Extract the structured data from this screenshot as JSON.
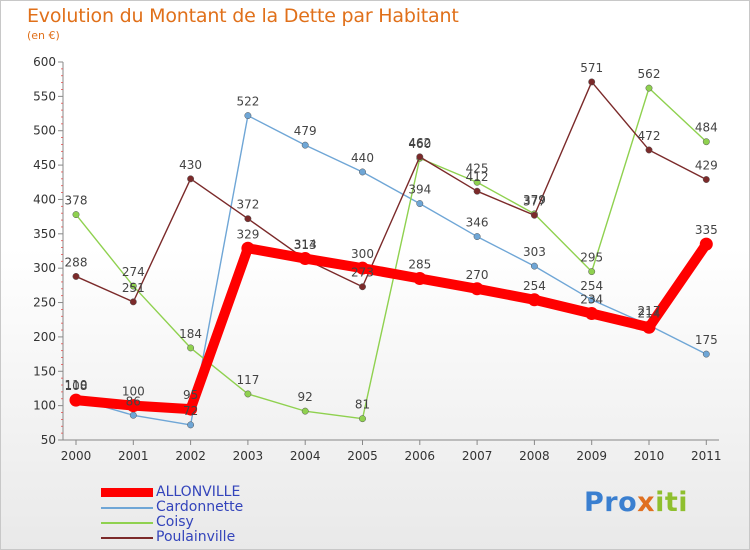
{
  "title": "Evolution du Montant de la Dette par Habitant",
  "subtitle": "(en €)",
  "logo": {
    "parts": [
      "Pro",
      "x",
      "iti"
    ],
    "colors": [
      "#3a7fd0",
      "#e07020",
      "#8fbf2e"
    ]
  },
  "chart_data": {
    "type": "line",
    "title": "Evolution du Montant de la Dette par Habitant",
    "ylabel": "(en €)",
    "xlabel": "",
    "x": [
      "2000",
      "2001",
      "2002",
      "2003",
      "2004",
      "2005",
      "2006",
      "2007",
      "2008",
      "2009",
      "2010",
      "2011"
    ],
    "ylim": [
      50,
      600
    ],
    "yticks": [
      50,
      100,
      150,
      200,
      250,
      300,
      350,
      400,
      450,
      500,
      550,
      600
    ],
    "grid": false,
    "legend_position": "bottom-left",
    "series": [
      {
        "name": "ALLONVILLE",
        "color": "#ff0000",
        "values": [
          108,
          100,
          95,
          329,
          314,
          300,
          285,
          270,
          254,
          234,
          214,
          335
        ]
      },
      {
        "name": "Cardonnette",
        "color": "#6fa6d6",
        "values": [
          110,
          86,
          72,
          522,
          479,
          440,
          394,
          346,
          303,
          254,
          217,
          175
        ]
      },
      {
        "name": "Coisy",
        "color": "#8fd14f",
        "values": [
          378,
          274,
          184,
          117,
          92,
          81,
          460,
          425,
          379,
          295,
          562,
          484
        ]
      },
      {
        "name": "Poulainville",
        "color": "#7b2a2a",
        "values": [
          288,
          251,
          430,
          372,
          313,
          273,
          462,
          412,
          377,
          571,
          472,
          429
        ]
      }
    ]
  }
}
